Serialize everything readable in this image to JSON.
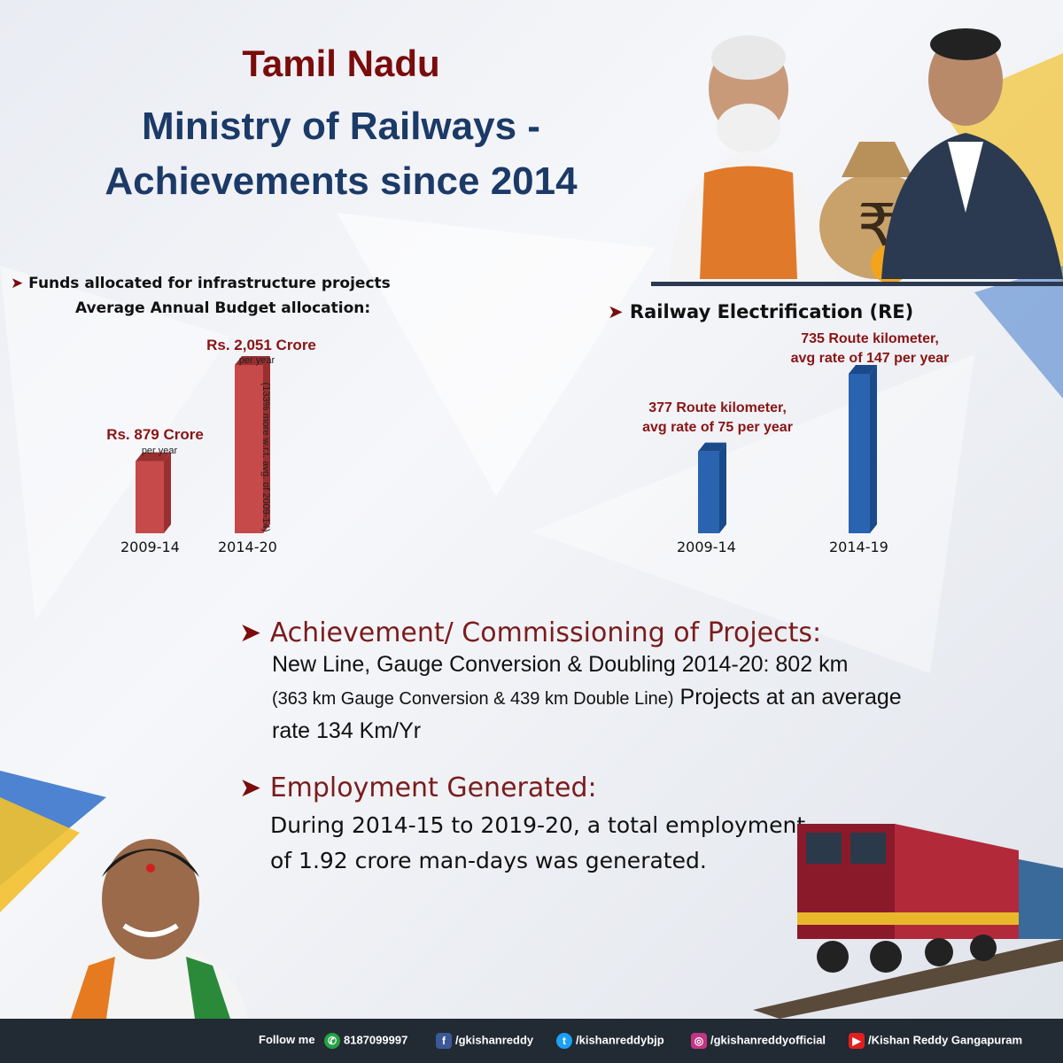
{
  "title": {
    "line1": "Tamil Nadu",
    "line2": "Ministry of Railways -",
    "line3": "Achievements since 2014"
  },
  "funds": {
    "heading1": "Funds allocated for infrastructure projects",
    "heading2": "Average Annual Budget allocation:",
    "bars": [
      {
        "category": "2009-14",
        "label": "Rs. 879 Crore",
        "sub": "per year",
        "value": 879
      },
      {
        "category": "2014-20",
        "label": "Rs. 2,051 Crore",
        "sub": "per year",
        "value": 2051
      }
    ],
    "note": "(133% more w.r.t. avg. of 2009-14)"
  },
  "electrification": {
    "heading": "Railway Electrification (RE)",
    "bars": [
      {
        "category": "2009-14",
        "label1": "377 Route kilometer,",
        "label2": "avg rate of 75 per year",
        "value": 377
      },
      {
        "category": "2014-19",
        "label1": "735 Route kilometer,",
        "label2": "avg rate of 147 per year",
        "value": 735
      }
    ]
  },
  "achievement": {
    "heading": "Achievement/ Commissioning of Projects:",
    "line1": "New Line, Gauge Conversion & Doubling 2014-20:  802 km",
    "line2a": "(363 km Gauge Conversion & 439 km Double Line)",
    "line2b": " Projects at an average",
    "line3": "rate 134 Km/Yr"
  },
  "employment": {
    "heading": "Employment Generated:",
    "line1": "During 2014-15 to 2019-20, a total employment",
    "line2": "of 1.92 crore man-days was generated."
  },
  "footer": {
    "follow": "Follow me",
    "phone": "8187099997",
    "facebook": "/gkishanreddy",
    "twitter": "/kishanreddybjp",
    "instagram": "/gkishanreddyofficial",
    "youtube": "/Kishan Reddy Gangapuram"
  },
  "chart_data": [
    {
      "type": "bar",
      "categories": [
        "2009-14",
        "2014-20"
      ],
      "values": [
        879,
        2051
      ],
      "title": "Funds allocated for infrastructure projects"
    },
    {
      "type": "bar",
      "categories": [
        "2009-14",
        "2014-19"
      ],
      "values": [
        377,
        735
      ],
      "title": "Railway Electrification (RE)"
    }
  ],
  "colors": {
    "maroon": "#7a0c0c",
    "navy": "#1c3a67",
    "redbar": "#c64a4a",
    "bluebar": "#2a63b0"
  }
}
